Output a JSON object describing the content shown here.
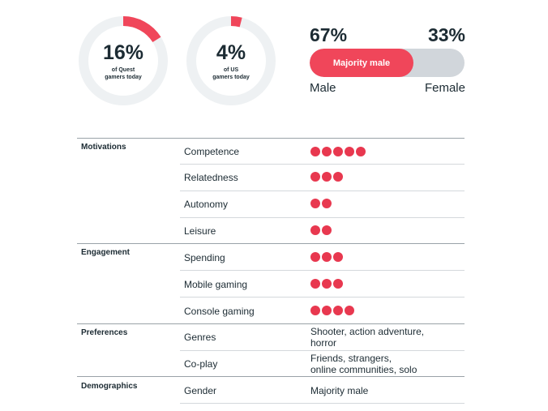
{
  "colors": {
    "accent": "#f0465a",
    "track": "#eef1f3",
    "bar_track": "#d1d6db",
    "text": "#1c2b33"
  },
  "donuts": [
    {
      "value": "16%",
      "caption_line1": "of Quest",
      "caption_line2": "gamers today",
      "fraction": 0.16
    },
    {
      "value": "4%",
      "caption_line1": "of US",
      "caption_line2": "gamers today",
      "fraction": 0.04
    }
  ],
  "gender": {
    "male_pct": "67%",
    "female_pct": "33%",
    "male_label": "Male",
    "female_label": "Female",
    "bar_label": "Majority male",
    "male_fraction": 0.67
  },
  "sections": [
    {
      "title": "Motivations",
      "rows": [
        {
          "label": "Competence",
          "dots": 5
        },
        {
          "label": "Relatedness",
          "dots": 3
        },
        {
          "label": "Autonomy",
          "dots": 2
        },
        {
          "label": "Leisure",
          "dots": 2
        }
      ]
    },
    {
      "title": "Engagement",
      "rows": [
        {
          "label": "Spending",
          "dots": 3
        },
        {
          "label": "Mobile gaming",
          "dots": 3
        },
        {
          "label": "Console gaming",
          "dots": 4
        }
      ]
    },
    {
      "title": "Preferences",
      "rows": [
        {
          "label": "Genres",
          "text_line1": "Shooter, action adventure,",
          "text_line2": "horror"
        },
        {
          "label": "Co-play",
          "text_line1": "Friends, strangers,",
          "text_line2": "online communities, solo"
        }
      ]
    },
    {
      "title": "Demographics",
      "rows": [
        {
          "label": "Gender",
          "text_line1": "Majority male"
        }
      ]
    }
  ]
}
